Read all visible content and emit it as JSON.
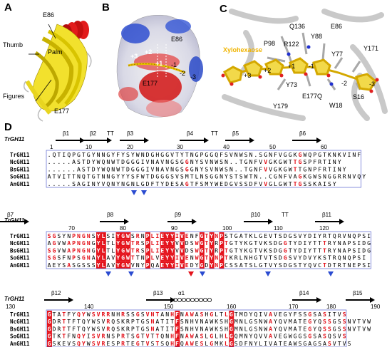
{
  "panels": {
    "A": {
      "label": "A",
      "annotations": {
        "e86": "E86",
        "thumb": "Thumb",
        "palm": "Palm",
        "fingers": "Figures",
        "e177": "E177"
      }
    },
    "B": {
      "label": "B",
      "annotations": {
        "e86": "E86",
        "e177": "E177",
        "s_plus3": "+3",
        "s_plus2": "+2",
        "s_plus1": "+1",
        "s_minus1": "-1",
        "s_minus2": "-2",
        "s_minus3": "-3"
      }
    },
    "C": {
      "label": "C",
      "ligand": "Xylohexaose",
      "residues": {
        "q136": "Q136",
        "e86": "E86",
        "y88": "Y88",
        "p98": "P98",
        "r122": "R122",
        "y77": "Y77",
        "y171": "Y171",
        "y73": "Y73",
        "e177q": "E177Q",
        "y179": "Y179",
        "w18": "W18",
        "s16": "S16"
      },
      "subsites": {
        "p3": "+3",
        "p2": "+2",
        "p1": "+1",
        "m1": "-1",
        "m2": "-2",
        "m3": "-3"
      }
    },
    "D": {
      "label": "D"
    }
  },
  "alignment": {
    "reference": "TrGH11",
    "names": [
      "TrGH11",
      "NcGH11",
      "BsGH11",
      "SoGH11",
      "AnGH11"
    ],
    "blocks": [
      {
        "elements": [
          "β1",
          "β2",
          "TT",
          "β3",
          "β4",
          "TT",
          "β5",
          "β6"
        ],
        "numbers": [
          "1",
          "10",
          "20",
          "30",
          "40",
          "50",
          "60"
        ],
        "sequences": [
          ".QTIQPGTGYNNGYFYSYWNDGHGGVTYTNGPGGQFSVNWSN.SGNFVGGKGWQPGTKNKVINF",
          ".....ASTDYWQNWTDGGGIVNAVNGSGGNYSVNWSN..TGNFVVGKGWTTGSPFRTINY",
          "......ASTDYWQNWTDGGGIVNAVNGSGGNYSVNWSN..TGNFVVGKGWTTGNPFRTINY",
          "ATVITTNQTGTNNGYYYSFWTDGGGSVSMTLNSGGNYSTSWTN..CGNFVAGKGWSNGGRRNVQY",
          ".....SAGINYVQNYNGNLGDFTYDESAGTFSMYWEDGVSSDFVVGLGWTTGSSKAISY"
        ],
        "triangles": [
          "blue",
          "blue"
        ]
      },
      {
        "elements": [
          "β7",
          "β8",
          "β9",
          "β10",
          "TT",
          "β11"
        ],
        "numbers": [
          "70",
          "80",
          "90",
          "100",
          "110",
          "120"
        ],
        "sequences": [
          "SGSYNPNGNSYLSIYGWSRNPLIEYYIVENFGTYNPSTGATKLGEVTSDGSVYDIYRTQRVNQPSI",
          "AGVWAPNGNGYLTLYGWTRSPLIEYYVVDSWGTYRPTGTYKGTVKSDGGTYDIYTTTRYNAPSIDG",
          "SGVWAPNGNGYLTLYGWTRSPLIEYYVVDSWGTYRPTGTYKGTVKSDGGTYDIYTTTRYNAPSIDG",
          "SGSFNPSGNAYLAVYGWTTNPLVEYYIVENWGTYNPTKRLNHGTVTSDGSVYDVYKSTRQNQPSI",
          "AEYSASGSSSYLAVYGWVNYPQAEYYIVEDYGDYNPCSSATSLGTVYSDGSTYQVCTDTRTNEPSI"
        ],
        "triangles": [
          "blue",
          "blue",
          "red",
          "blue",
          "blue",
          "blue"
        ]
      },
      {
        "elements": [
          "β12",
          "β13",
          "α1",
          "β14",
          "β15"
        ],
        "numbers": [
          "130",
          "140",
          "150",
          "160",
          "170",
          "180",
          "190"
        ],
        "sequences": [
          "GTATFYQYWSVRRNHRSSGSVNTANHFNAWASHGLTLGTMDYQIVAVEGYFSSGSASITVS",
          "GDRTTFTQYWSVRQSKRPTGSNATITFSNHVNAWKSHGMNLGSNWAYQVMATEGYQSSGSSNVTVW",
          "GDRTTFTQYWSVRQSKRPTGSNATITFSNHVNAWKSHGMNLGSNWAYQVMATEGYQSSGSSNVTVW",
          "GTKTFNQYISVRNSPRTSGTVTTQNHFNAWASLGLHLGQMNYQVVAVEGWGGSGSASQSVS",
          "GSKEVSQYWSVRESPRTEGTVSTSQHFQAWESLGMKLGSDFNYLIVATEAWSGAGSASVTVS"
        ],
        "triangles": [
          "blue",
          "red",
          "blue"
        ]
      }
    ]
  }
}
